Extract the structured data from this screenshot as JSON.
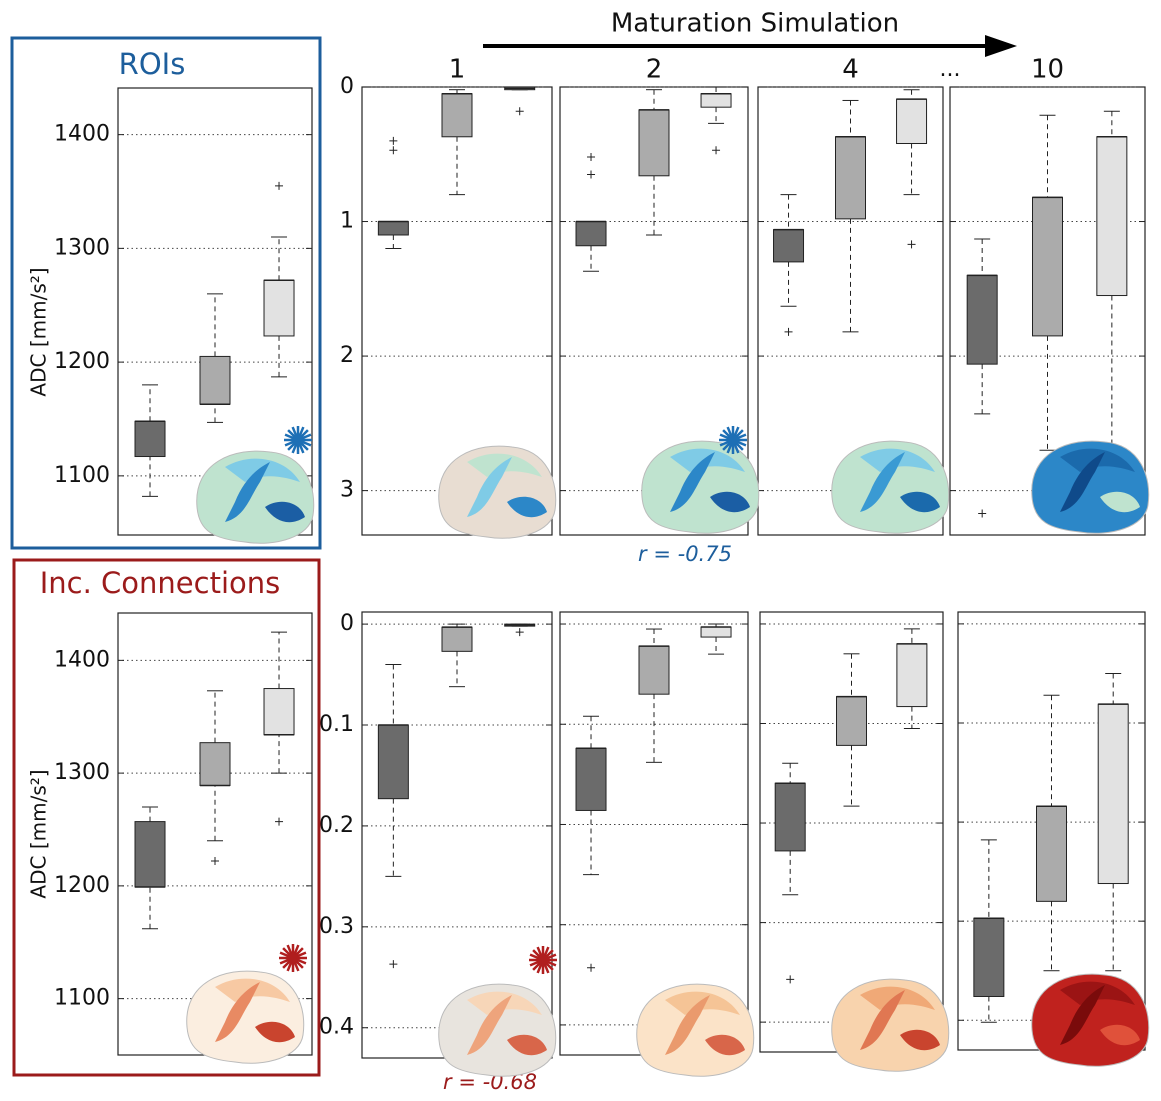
{
  "figure": {
    "title": "Maturation Simulation",
    "ellipsis": "..."
  },
  "chart_data": [
    {
      "type": "box",
      "title": "ROIs",
      "title_color": "#1d5e9c",
      "ylabel": "ADC [mm/s²]",
      "ylim": [
        1048,
        1441
      ],
      "yticks": [
        1100,
        1200,
        1300,
        1400
      ],
      "grid": true,
      "box_colors": [
        "#6b6b6b",
        "#ababab",
        "#e2e2e2"
      ],
      "boxes": [
        {
          "min": 1082,
          "q1": 1117,
          "median": 1148,
          "q3": 1148,
          "max": 1180,
          "outliers": []
        },
        {
          "min": 1147,
          "q1": 1163,
          "median": 1163,
          "q3": 1205,
          "max": 1260,
          "outliers": []
        },
        {
          "min": 1187,
          "q1": 1223,
          "median": 1272,
          "q3": 1272,
          "max": 1310,
          "outliers": [
            1355
          ]
        }
      ]
    },
    {
      "type": "box",
      "title": "1",
      "ylim": [
        0,
        3.33
      ],
      "yticks": [
        0,
        1,
        2,
        3
      ],
      "y_inverted": true,
      "grid": true,
      "box_colors": [
        "#6b6b6b",
        "#ababab",
        "#e2e2e2"
      ],
      "boxes": [
        {
          "min": 1.0,
          "q1": 1.0,
          "median": 1.0,
          "q3": 1.1,
          "max": 1.2,
          "outliers": [
            0.4,
            0.47
          ]
        },
        {
          "min": 0.02,
          "q1": 0.05,
          "median": 0.05,
          "q3": 0.37,
          "max": 0.8,
          "outliers": []
        },
        {
          "min": 0,
          "q1": 0,
          "median": 0.01,
          "q3": 0.02,
          "max": 0.02,
          "outliers": [
            0.18
          ]
        }
      ]
    },
    {
      "type": "box",
      "title": "2",
      "ylim": [
        0,
        3.33
      ],
      "y_inverted": true,
      "grid": true,
      "yticks_from": 1,
      "correlation": "r = -0.75",
      "correlation_color": "#1d5e9c",
      "box_colors": [
        "#6b6b6b",
        "#ababab",
        "#e2e2e2"
      ],
      "boxes": [
        {
          "min": 1.0,
          "q1": 1.0,
          "median": 1.0,
          "q3": 1.18,
          "max": 1.37,
          "outliers": [
            0.52,
            0.65
          ]
        },
        {
          "min": 0.02,
          "q1": 0.17,
          "median": 0.17,
          "q3": 0.66,
          "max": 1.1,
          "outliers": []
        },
        {
          "min": 0,
          "q1": 0.05,
          "median": 0.05,
          "q3": 0.15,
          "max": 0.27,
          "outliers": [
            0.47
          ]
        }
      ]
    },
    {
      "type": "box",
      "title": "4",
      "ylim": [
        0,
        3.33
      ],
      "y_inverted": true,
      "grid": true,
      "yticks_from": 1,
      "box_colors": [
        "#6b6b6b",
        "#ababab",
        "#e2e2e2"
      ],
      "boxes": [
        {
          "min": 0.8,
          "q1": 1.06,
          "median": 1.06,
          "q3": 1.3,
          "max": 1.63,
          "outliers": [
            1.82
          ]
        },
        {
          "min": 0.1,
          "q1": 0.37,
          "median": 0.37,
          "q3": 0.98,
          "max": 1.82,
          "outliers": []
        },
        {
          "min": 0.02,
          "q1": 0.09,
          "median": 0.09,
          "q3": 0.42,
          "max": 0.8,
          "outliers": [
            1.17
          ]
        }
      ]
    },
    {
      "type": "box",
      "title": "10",
      "ylim": [
        0,
        3.33
      ],
      "y_inverted": true,
      "grid": true,
      "yticks_from": 1,
      "box_colors": [
        "#6b6b6b",
        "#ababab",
        "#e2e2e2"
      ],
      "boxes": [
        {
          "min": 1.13,
          "q1": 1.4,
          "median": 1.4,
          "q3": 2.06,
          "max": 2.43,
          "outliers": [
            3.17
          ]
        },
        {
          "min": 0.21,
          "q1": 0.82,
          "median": 0.82,
          "q3": 1.85,
          "max": 2.7,
          "outliers": []
        },
        {
          "min": 0.18,
          "q1": 0.37,
          "median": 0.37,
          "q3": 1.55,
          "max": 2.7,
          "outliers": []
        }
      ]
    },
    {
      "type": "box",
      "title": "Inc. Connections",
      "title_color": "#9b1b1b",
      "ylabel": "ADC [mm/s²]",
      "ylim": [
        1050,
        1442
      ],
      "yticks": [
        1100,
        1200,
        1300,
        1400
      ],
      "grid": true,
      "box_colors": [
        "#6b6b6b",
        "#ababab",
        "#e2e2e2"
      ],
      "boxes": [
        {
          "min": 1162,
          "q1": 1199,
          "median": 1199,
          "q3": 1257,
          "max": 1270,
          "outliers": []
        },
        {
          "min": 1240,
          "q1": 1289,
          "median": 1289,
          "q3": 1327,
          "max": 1373,
          "outliers": [
            1222
          ]
        },
        {
          "min": 1300,
          "q1": 1334,
          "median": 1334,
          "q3": 1375,
          "max": 1425,
          "outliers": [
            1257
          ]
        }
      ]
    },
    {
      "type": "box",
      "ylim": [
        -0.012,
        0.43
      ],
      "yticks": [
        0,
        0.1,
        0.2,
        0.3,
        0.4
      ],
      "y_inverted": true,
      "grid": true,
      "correlation": "r = -0.68",
      "correlation_color": "#9b1b1b",
      "box_colors": [
        "#6b6b6b",
        "#ababab",
        "#e2e2e2"
      ],
      "boxes": [
        {
          "min": 0.04,
          "q1": 0.1,
          "median": 0.1,
          "q3": 0.173,
          "max": 0.25,
          "outliers": [
            0.337
          ]
        },
        {
          "min": 0,
          "q1": 0.003,
          "median": 0.003,
          "q3": 0.027,
          "max": 0.062,
          "outliers": []
        },
        {
          "min": 0,
          "q1": 0,
          "median": 0.001,
          "q3": 0.002,
          "max": 0.002,
          "outliers": [
            0.008
          ]
        }
      ]
    },
    {
      "type": "box",
      "ylim": [
        -0.012,
        0.43
      ],
      "y_inverted": true,
      "grid": true,
      "yticks_from": 6,
      "box_colors": [
        "#6b6b6b",
        "#ababab",
        "#e2e2e2"
      ],
      "boxes": [
        {
          "min": 0.092,
          "q1": 0.124,
          "median": 0.124,
          "q3": 0.186,
          "max": 0.25,
          "outliers": [
            0.343
          ]
        },
        {
          "min": 0.005,
          "q1": 0.022,
          "median": 0.022,
          "q3": 0.07,
          "max": 0.138,
          "outliers": []
        },
        {
          "min": 0,
          "q1": 0.003,
          "median": 0.003,
          "q3": 0.013,
          "max": 0.03,
          "outliers": []
        }
      ]
    },
    {
      "type": "box",
      "ylim": [
        -0.012,
        0.43
      ],
      "y_inverted": true,
      "grid": true,
      "yticks_from": 6,
      "box_colors": [
        "#6b6b6b",
        "#ababab",
        "#e2e2e2"
      ],
      "boxes": [
        {
          "min": 0.14,
          "q1": 0.16,
          "median": 0.16,
          "q3": 0.228,
          "max": 0.272,
          "outliers": [
            0.357
          ]
        },
        {
          "min": 0.03,
          "q1": 0.073,
          "median": 0.073,
          "q3": 0.122,
          "max": 0.183,
          "outliers": []
        },
        {
          "min": 0.005,
          "q1": 0.02,
          "median": 0.02,
          "q3": 0.083,
          "max": 0.105,
          "outliers": []
        }
      ]
    },
    {
      "type": "box",
      "ylim": [
        -0.012,
        0.43
      ],
      "y_inverted": true,
      "grid": true,
      "yticks_from": 6,
      "box_colors": [
        "#6b6b6b",
        "#ababab",
        "#e2e2e2"
      ],
      "boxes": [
        {
          "min": 0.218,
          "q1": 0.297,
          "median": 0.297,
          "q3": 0.376,
          "max": 0.402,
          "outliers": []
        },
        {
          "min": 0.072,
          "q1": 0.184,
          "median": 0.184,
          "q3": 0.28,
          "max": 0.35,
          "outliers": []
        },
        {
          "min": 0.05,
          "q1": 0.081,
          "median": 0.081,
          "q3": 0.262,
          "max": 0.35,
          "outliers": []
        }
      ]
    }
  ]
}
